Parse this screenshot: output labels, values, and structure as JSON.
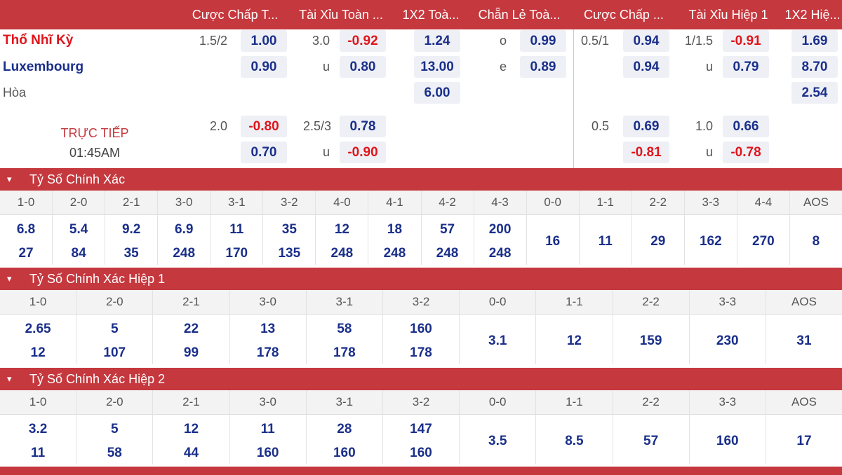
{
  "header": {
    "columns": [
      "Cược Chấp T...",
      "Tài Xỉu Toàn ...",
      "1X2 Toà...",
      "Chẵn Lẻ Toà...",
      "Cược Chấp ...",
      "Tài Xỉu Hiệp 1",
      "1X2 Hiệ..."
    ]
  },
  "match": {
    "home": "Thổ Nhĩ Kỳ",
    "away": "Luxembourg",
    "draw": "Hòa",
    "live_label": "TRỰC TIẾP",
    "clock": "01:45AM",
    "rows": [
      {
        "hc_line": "1.5/2",
        "hc_odds": "1.00",
        "ou_line": "3.0",
        "ou_odds": "-0.92",
        "x12": "1.24",
        "oe_label": "o",
        "oe_odds": "0.99",
        "h1_hc_line": "0.5/1",
        "h1_hc_odds": "0.94",
        "h1_ou_line": "1/1.5",
        "h1_ou_odds": "-0.91",
        "h1_x12": "1.69"
      },
      {
        "hc_odds": "0.90",
        "ou_line": "u",
        "ou_odds": "0.80",
        "x12": "13.00",
        "oe_label": "e",
        "oe_odds": "0.89",
        "h1_hc_odds": "0.94",
        "h1_ou_line": "u",
        "h1_ou_odds": "0.79",
        "h1_x12": "8.70"
      },
      {
        "x12": "6.00",
        "h1_x12": "2.54"
      },
      {
        "hc_line": "2.0",
        "hc_odds": "-0.80",
        "ou_line": "2.5/3",
        "ou_odds": "0.78",
        "h1_hc_line": "0.5",
        "h1_hc_odds": "0.69",
        "h1_ou_line": "1.0",
        "h1_ou_odds": "0.66"
      },
      {
        "hc_odds": "0.70",
        "ou_line": "u",
        "ou_odds": "-0.90",
        "h1_hc_odds": "-0.81",
        "h1_ou_line": "u",
        "h1_ou_odds": "-0.78"
      }
    ]
  },
  "sections": [
    {
      "title": "Tỷ Số Chính Xác",
      "scores": [
        "1-0",
        "2-0",
        "2-1",
        "3-0",
        "3-1",
        "3-2",
        "4-0",
        "4-1",
        "4-2",
        "4-3",
        "0-0",
        "1-1",
        "2-2",
        "3-3",
        "4-4",
        "AOS"
      ],
      "top": [
        "6.8",
        "5.4",
        "9.2",
        "6.9",
        "11",
        "35",
        "12",
        "18",
        "57",
        "200",
        "",
        "",
        "",
        "",
        "",
        ""
      ],
      "bottom": [
        "27",
        "84",
        "35",
        "248",
        "170",
        "135",
        "248",
        "248",
        "248",
        "248",
        "",
        "",
        "",
        "",
        "",
        ""
      ],
      "mid": [
        "",
        "",
        "",
        "",
        "",
        "",
        "",
        "",
        "",
        "",
        "16",
        "11",
        "29",
        "162",
        "270",
        "8"
      ]
    },
    {
      "title": "Tỷ Số Chính Xác Hiệp 1",
      "scores": [
        "1-0",
        "2-0",
        "2-1",
        "3-0",
        "3-1",
        "3-2",
        "0-0",
        "1-1",
        "2-2",
        "3-3",
        "AOS"
      ],
      "top": [
        "2.65",
        "5",
        "22",
        "13",
        "58",
        "160",
        "",
        "",
        "",
        "",
        ""
      ],
      "bottom": [
        "12",
        "107",
        "99",
        "178",
        "178",
        "178",
        "",
        "",
        "",
        "",
        ""
      ],
      "mid": [
        "",
        "",
        "",
        "",
        "",
        "",
        "3.1",
        "12",
        "159",
        "230",
        "31"
      ]
    },
    {
      "title": "Tỷ Số Chính Xác Hiệp 2",
      "scores": [
        "1-0",
        "2-0",
        "2-1",
        "3-0",
        "3-1",
        "3-2",
        "0-0",
        "1-1",
        "2-2",
        "3-3",
        "AOS"
      ],
      "top": [
        "3.2",
        "5",
        "12",
        "11",
        "28",
        "147",
        "",
        "",
        "",
        "",
        ""
      ],
      "bottom": [
        "11",
        "58",
        "44",
        "160",
        "160",
        "160",
        "",
        "",
        "",
        "",
        ""
      ],
      "mid": [
        "",
        "",
        "",
        "",
        "",
        "",
        "3.5",
        "8.5",
        "57",
        "160",
        "17"
      ]
    }
  ],
  "colors": {
    "accent": "#c5383e",
    "home": "#e0141b",
    "away": "#1a2f8a",
    "negative": "#e0141b"
  },
  "icons": {
    "section_toggle": "chevron-down-icon"
  }
}
